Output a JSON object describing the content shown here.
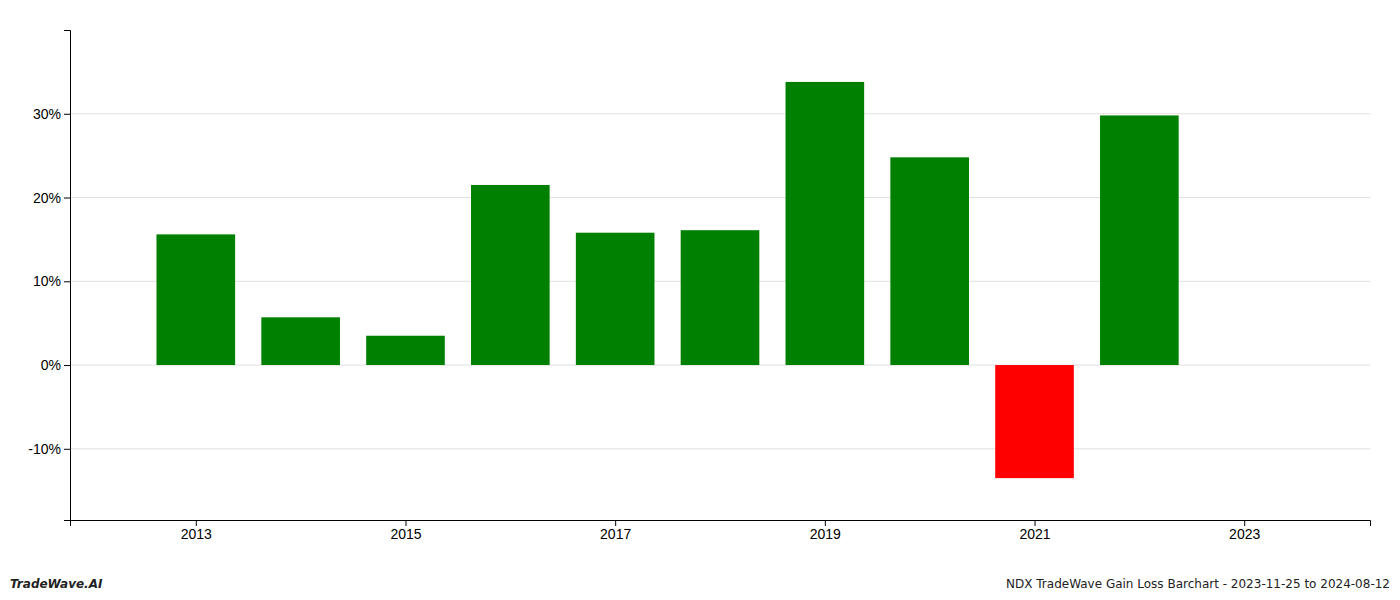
{
  "chart_data": {
    "type": "bar",
    "x": [
      2013,
      2014,
      2015,
      2016,
      2017,
      2018,
      2019,
      2020,
      2021,
      2022
    ],
    "values": [
      0.156,
      0.057,
      0.035,
      0.215,
      0.158,
      0.161,
      0.338,
      0.248,
      -0.135,
      0.298
    ],
    "colors": [
      "#008000",
      "#008000",
      "#008000",
      "#008000",
      "#008000",
      "#008000",
      "#008000",
      "#008000",
      "#ff0000",
      "#008000"
    ],
    "xlim": [
      2011.8,
      2024.2
    ],
    "xticks": [
      2013,
      2015,
      2017,
      2019,
      2021,
      2023
    ],
    "ylim": [
      -0.185,
      0.4
    ],
    "yticks": [
      {
        "value": -0.1,
        "label": "-10%"
      },
      {
        "value": 0.0,
        "label": "0%"
      },
      {
        "value": 0.1,
        "label": "10%"
      },
      {
        "value": 0.2,
        "label": "20%"
      },
      {
        "value": 0.3,
        "label": "30%"
      }
    ],
    "grid": true,
    "annotations": [
      "TradeWave.AI",
      "NDX TradeWave Gain Loss Barchart - 2023-11-25 to 2024-08-12"
    ]
  }
}
